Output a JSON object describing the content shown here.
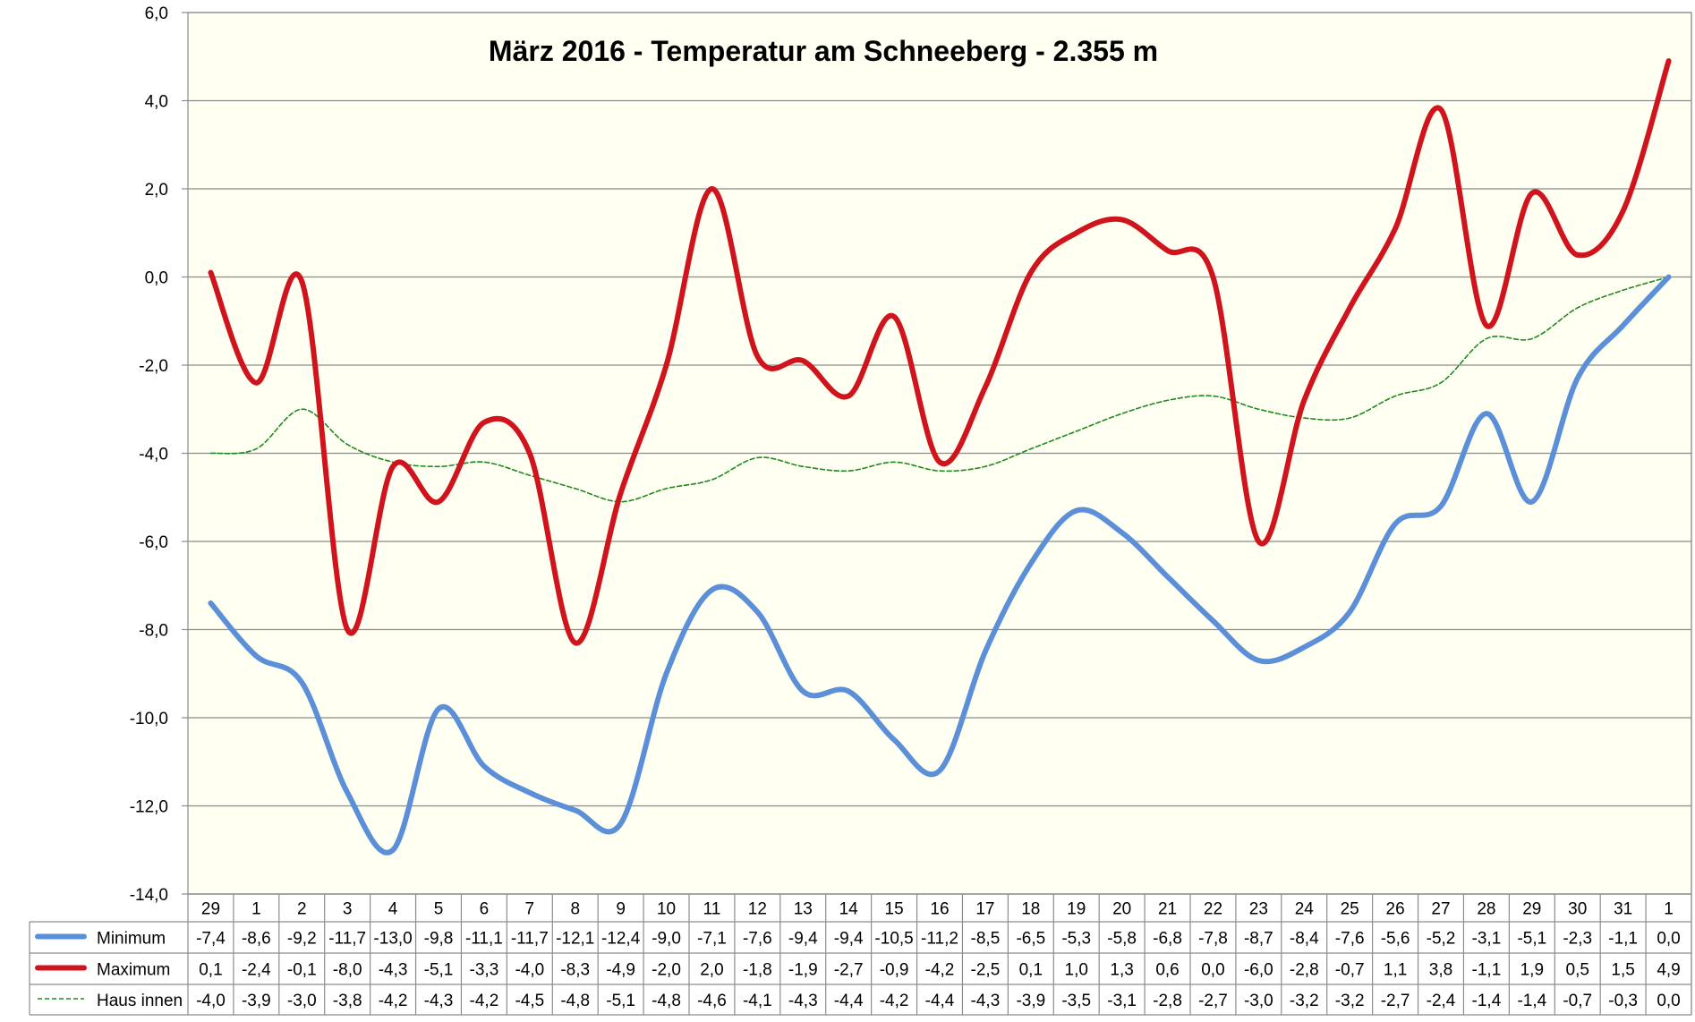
{
  "chart_data": {
    "type": "line",
    "title": "März 2016 - Temperatur am Schneeberg - 2.355 m",
    "xlabel": "",
    "ylabel": "",
    "ylim": [
      -14,
      6
    ],
    "ytick_step": 2,
    "y_tick_labels": [
      "6,0",
      "4,0",
      "2,0",
      "0,0",
      "-2,0",
      "-4,0",
      "-6,0",
      "-8,0",
      "-10,0",
      "-12,0",
      "-14,0"
    ],
    "grid": true,
    "categories": [
      "29",
      "1",
      "2",
      "3",
      "4",
      "5",
      "6",
      "7",
      "8",
      "9",
      "10",
      "11",
      "12",
      "13",
      "14",
      "15",
      "16",
      "17",
      "18",
      "19",
      "20",
      "21",
      "22",
      "23",
      "24",
      "25",
      "26",
      "27",
      "28",
      "29",
      "30",
      "31",
      "1"
    ],
    "series": [
      {
        "name": "Minimum",
        "color": "#5B8FD8",
        "style": "solid",
        "values": [
          -7.4,
          -8.6,
          -9.2,
          -11.7,
          -13.0,
          -9.8,
          -11.1,
          -11.7,
          -12.1,
          -12.4,
          -9.0,
          -7.1,
          -7.6,
          -9.4,
          -9.4,
          -10.5,
          -11.2,
          -8.5,
          -6.5,
          -5.3,
          -5.8,
          -6.8,
          -7.8,
          -8.7,
          -8.4,
          -7.6,
          -5.6,
          -5.2,
          -3.1,
          -5.1,
          -2.3,
          -1.1,
          0.0
        ],
        "labels": [
          "-7,4",
          "-8,6",
          "-9,2",
          "-11,7",
          "-13,0",
          "-9,8",
          "-11,1",
          "-11,7",
          "-12,1",
          "-12,4",
          "-9,0",
          "-7,1",
          "-7,6",
          "-9,4",
          "-9,4",
          "-10,5",
          "-11,2",
          "-8,5",
          "-6,5",
          "-5,3",
          "-5,8",
          "-6,8",
          "-7,8",
          "-8,7",
          "-8,4",
          "-7,6",
          "-5,6",
          "-5,2",
          "-3,1",
          "-5,1",
          "-2,3",
          "-1,1",
          "0,0"
        ]
      },
      {
        "name": "Maximum",
        "color": "#D0141E",
        "style": "solid",
        "values": [
          0.1,
          -2.4,
          -0.1,
          -8.0,
          -4.3,
          -5.1,
          -3.3,
          -4.0,
          -8.3,
          -4.9,
          -2.0,
          2.0,
          -1.8,
          -1.9,
          -2.7,
          -0.9,
          -4.2,
          -2.5,
          0.1,
          1.0,
          1.3,
          0.6,
          0.0,
          -6.0,
          -2.8,
          -0.7,
          1.1,
          3.8,
          -1.1,
          1.9,
          0.5,
          1.5,
          4.9
        ],
        "labels": [
          "0,1",
          "-2,4",
          "-0,1",
          "-8,0",
          "-4,3",
          "-5,1",
          "-3,3",
          "-4,0",
          "-8,3",
          "-4,9",
          "-2,0",
          "2,0",
          "-1,8",
          "-1,9",
          "-2,7",
          "-0,9",
          "-4,2",
          "-2,5",
          "0,1",
          "1,0",
          "1,3",
          "0,6",
          "0,0",
          "-6,0",
          "-2,8",
          "-0,7",
          "1,1",
          "3,8",
          "-1,1",
          "1,9",
          "0,5",
          "1,5",
          "4,9"
        ]
      },
      {
        "name": "Haus innen",
        "color": "#1E8A1E",
        "style": "dashed",
        "values": [
          -4.0,
          -3.9,
          -3.0,
          -3.8,
          -4.2,
          -4.3,
          -4.2,
          -4.5,
          -4.8,
          -5.1,
          -4.8,
          -4.6,
          -4.1,
          -4.3,
          -4.4,
          -4.2,
          -4.4,
          -4.3,
          -3.9,
          -3.5,
          -3.1,
          -2.8,
          -2.7,
          -3.0,
          -3.2,
          -3.2,
          -2.7,
          -2.4,
          -1.4,
          -1.4,
          -0.7,
          -0.3,
          0.0
        ],
        "labels": [
          "-4,0",
          "-3,9",
          "-3,0",
          "-3,8",
          "-4,2",
          "-4,3",
          "-4,2",
          "-4,5",
          "-4,8",
          "-5,1",
          "-4,8",
          "-4,6",
          "-4,1",
          "-4,3",
          "-4,4",
          "-4,2",
          "-4,4",
          "-4,3",
          "-3,9",
          "-3,5",
          "-3,1",
          "-2,8",
          "-2,7",
          "-3,0",
          "-3,2",
          "-3,2",
          "-2,7",
          "-2,4",
          "-1,4",
          "-1,4",
          "-0,7",
          "-0,3",
          "0,0"
        ]
      }
    ],
    "legend_placement": "data-table",
    "plot_background": "#FFFFF2",
    "gridline_color": "#8C8C8C"
  }
}
